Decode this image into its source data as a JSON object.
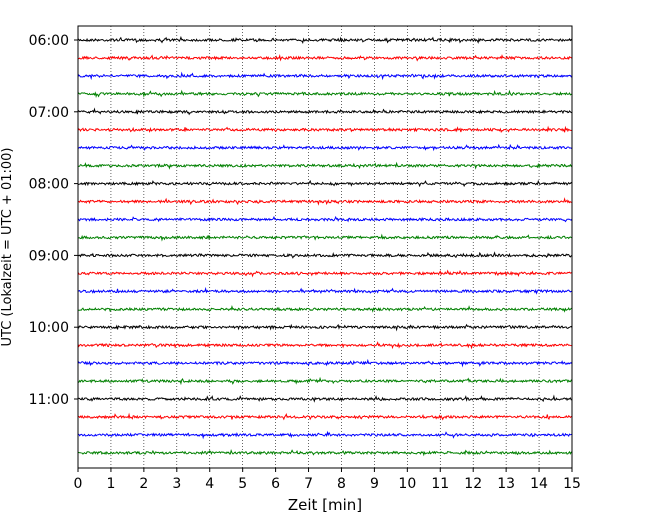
{
  "chart_data": {
    "type": "line",
    "title": "",
    "xlabel": "Zeit  [min]",
    "ylabel": "UTC (Lokalzeit = UTC + 01:00)",
    "xlim": [
      0,
      15
    ],
    "x_ticks": [
      0,
      1,
      2,
      3,
      4,
      5,
      6,
      7,
      8,
      9,
      10,
      11,
      12,
      13,
      14,
      15
    ],
    "y_tick_labels": [
      "06:00",
      "07:00",
      "08:00",
      "09:00",
      "10:00",
      "11:00"
    ],
    "trace_interval_min": 15,
    "grid": "vertical dotted at each minute",
    "colors": [
      "#000000",
      "#ff0000",
      "#0000ff",
      "#008000"
    ],
    "traces": [
      {
        "start": "06:00",
        "color": "#000000"
      },
      {
        "start": "06:15",
        "color": "#ff0000"
      },
      {
        "start": "06:30",
        "color": "#0000ff"
      },
      {
        "start": "06:45",
        "color": "#008000"
      },
      {
        "start": "07:00",
        "color": "#000000"
      },
      {
        "start": "07:15",
        "color": "#ff0000"
      },
      {
        "start": "07:30",
        "color": "#0000ff"
      },
      {
        "start": "07:45",
        "color": "#008000"
      },
      {
        "start": "08:00",
        "color": "#000000"
      },
      {
        "start": "08:15",
        "color": "#ff0000"
      },
      {
        "start": "08:30",
        "color": "#0000ff"
      },
      {
        "start": "08:45",
        "color": "#008000"
      },
      {
        "start": "09:00",
        "color": "#000000"
      },
      {
        "start": "09:15",
        "color": "#ff0000"
      },
      {
        "start": "09:30",
        "color": "#0000ff"
      },
      {
        "start": "09:45",
        "color": "#008000"
      },
      {
        "start": "10:00",
        "color": "#000000"
      },
      {
        "start": "10:15",
        "color": "#ff0000"
      },
      {
        "start": "10:30",
        "color": "#0000ff"
      },
      {
        "start": "10:45",
        "color": "#008000"
      },
      {
        "start": "11:00",
        "color": "#000000"
      },
      {
        "start": "11:15",
        "color": "#ff0000"
      },
      {
        "start": "11:30",
        "color": "#0000ff"
      },
      {
        "start": "11:45",
        "color": "#008000"
      }
    ]
  }
}
